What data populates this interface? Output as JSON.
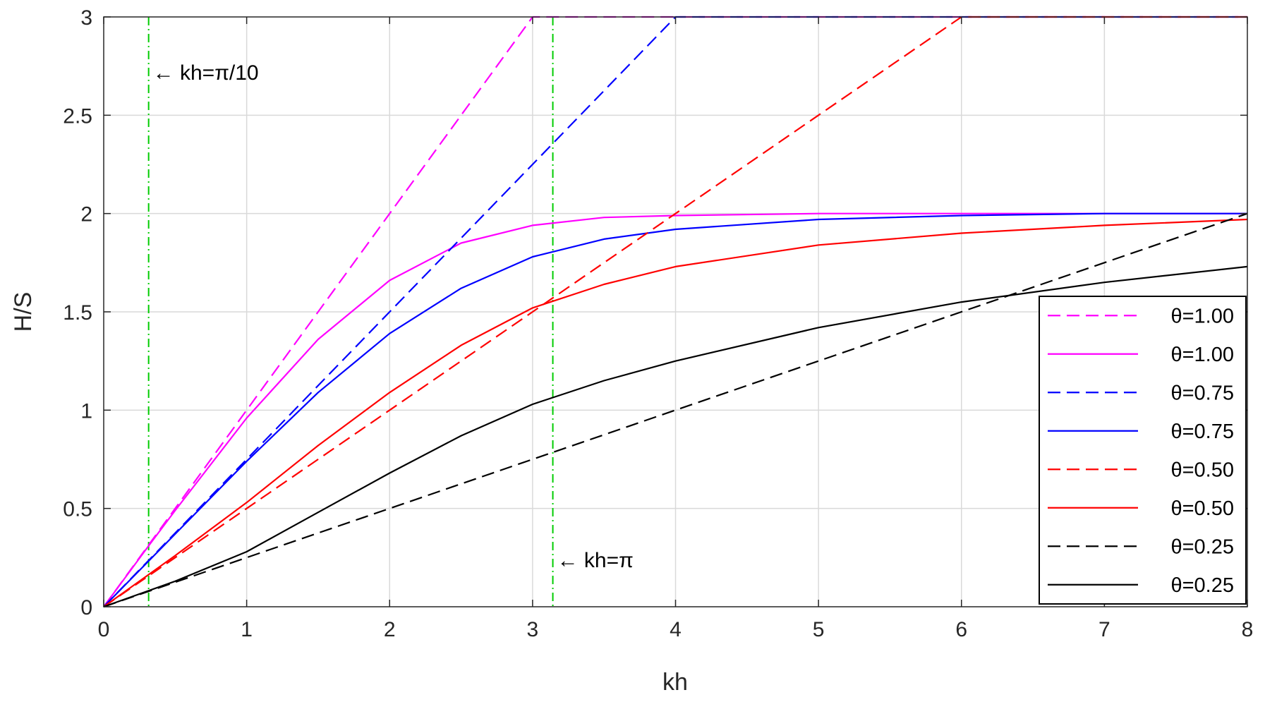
{
  "chart_data": {
    "type": "line",
    "xlabel": "kh",
    "ylabel": "H/S",
    "xlim": [
      0,
      8
    ],
    "ylim": [
      0,
      3
    ],
    "xticks": [
      "0",
      "1",
      "2",
      "3",
      "4",
      "5",
      "6",
      "7",
      "8"
    ],
    "yticks": [
      "0",
      "0.5",
      "1",
      "1.5",
      "2",
      "2.5",
      "3"
    ],
    "grid": true,
    "legend_placement": "bottom-right",
    "colors": {
      "magenta": "#ff00ff",
      "blue": "#0000ff",
      "red": "#ff0000",
      "black": "#000000",
      "reference_line": "#00cc00",
      "grid": "#d9d9d9"
    },
    "reference_lines": [
      {
        "x": 0.3142,
        "label": "← kh=π/10",
        "label_y": 2.72
      },
      {
        "x": 3.1416,
        "label": "← kh=π",
        "label_y": 0.24
      }
    ],
    "series": [
      {
        "name": "θ=1.00",
        "style": "dashed",
        "color": "#ff00ff",
        "x": [
          0,
          0.5,
          1,
          1.5,
          2,
          2.5,
          3,
          3.5,
          4,
          5,
          6,
          7,
          8
        ],
        "y": [
          0,
          0.5,
          1,
          1.5,
          2,
          2.5,
          3,
          3,
          3,
          3,
          3,
          3,
          3
        ]
      },
      {
        "name": "θ=1.00",
        "style": "solid",
        "color": "#ff00ff",
        "x": [
          0,
          0.3142,
          0.5,
          1,
          1.5,
          2,
          2.5,
          3,
          3.5,
          4,
          5,
          6,
          7,
          8
        ],
        "y": [
          0,
          0.31,
          0.49,
          0.96,
          1.36,
          1.66,
          1.85,
          1.94,
          1.98,
          1.99,
          2.0,
          2.0,
          2.0,
          2.0
        ]
      },
      {
        "name": "θ=0.75",
        "style": "dashed",
        "color": "#0000ff",
        "x": [
          0,
          0.5,
          1,
          1.5,
          2,
          2.5,
          3,
          3.5,
          4,
          5,
          6,
          7,
          8
        ],
        "y": [
          0,
          0.375,
          0.75,
          1.125,
          1.5,
          1.875,
          2.25,
          2.625,
          3,
          3,
          3,
          3,
          3
        ]
      },
      {
        "name": "θ=0.75",
        "style": "solid",
        "color": "#0000ff",
        "x": [
          0,
          0.5,
          1,
          1.5,
          2,
          2.5,
          3,
          3.5,
          4,
          5,
          6,
          7,
          8
        ],
        "y": [
          0,
          0.37,
          0.74,
          1.09,
          1.39,
          1.62,
          1.78,
          1.87,
          1.92,
          1.97,
          1.99,
          2.0,
          2.0
        ]
      },
      {
        "name": "θ=0.50",
        "style": "dashed",
        "color": "#ff0000",
        "x": [
          0,
          0.5,
          1,
          1.5,
          2,
          2.5,
          3,
          3.5,
          4,
          5,
          6,
          7,
          8
        ],
        "y": [
          0,
          0.25,
          0.5,
          0.75,
          1.0,
          1.25,
          1.5,
          1.75,
          2.0,
          2.5,
          3,
          3,
          3
        ]
      },
      {
        "name": "θ=0.50",
        "style": "solid",
        "color": "#ff0000",
        "x": [
          0,
          0.5,
          1,
          1.5,
          2,
          2.5,
          3,
          3.5,
          4,
          5,
          6,
          7,
          8
        ],
        "y": [
          0,
          0.26,
          0.53,
          0.82,
          1.09,
          1.33,
          1.52,
          1.64,
          1.73,
          1.84,
          1.9,
          1.94,
          1.97
        ]
      },
      {
        "name": "θ=0.25",
        "style": "dashed",
        "color": "#000000",
        "x": [
          0,
          0.5,
          1,
          1.5,
          2,
          2.5,
          3,
          3.5,
          4,
          5,
          6,
          7,
          8
        ],
        "y": [
          0,
          0.125,
          0.25,
          0.375,
          0.5,
          0.625,
          0.75,
          0.875,
          1.0,
          1.25,
          1.5,
          1.75,
          2.0
        ]
      },
      {
        "name": "θ=0.25",
        "style": "solid",
        "color": "#000000",
        "x": [
          0,
          0.5,
          1,
          1.5,
          2,
          2.5,
          3,
          3.5,
          4,
          5,
          6,
          7,
          8
        ],
        "y": [
          0,
          0.13,
          0.28,
          0.48,
          0.68,
          0.87,
          1.03,
          1.15,
          1.25,
          1.42,
          1.55,
          1.65,
          1.73
        ]
      }
    ]
  }
}
